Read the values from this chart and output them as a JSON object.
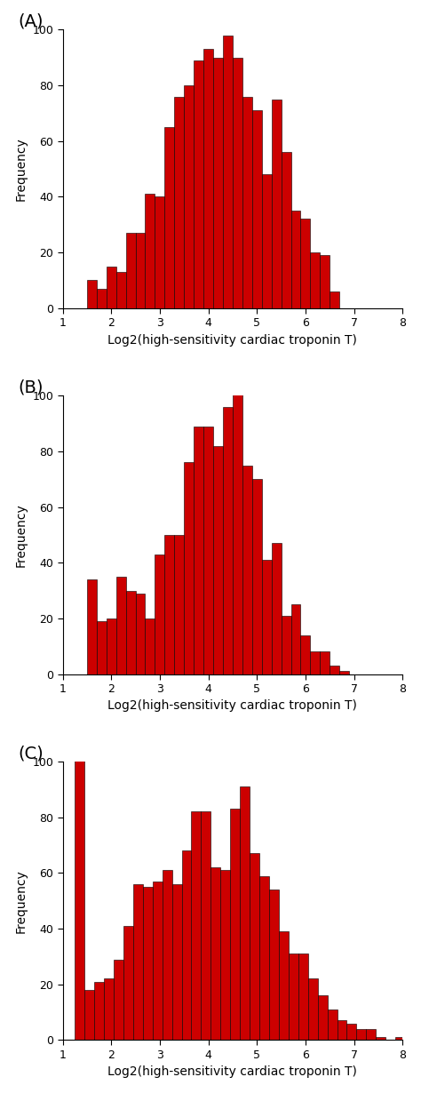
{
  "panels": [
    {
      "label": "(A)",
      "bar_heights": [
        10,
        7,
        15,
        13,
        27,
        27,
        41,
        40,
        65,
        76,
        80,
        89,
        93,
        90,
        98,
        90,
        76,
        71,
        48,
        75,
        56,
        35,
        32,
        20,
        19,
        6
      ],
      "bin_start": 1.5,
      "bin_width": 0.2,
      "xlim": [
        1,
        8
      ],
      "ylim": [
        0,
        100
      ],
      "xticks": [
        1,
        2,
        3,
        4,
        5,
        6,
        7,
        8
      ],
      "yticks": [
        0,
        20,
        40,
        60,
        80,
        100
      ],
      "xlabel": "Log2(high-sensitivity cardiac troponin T)",
      "ylabel": "Frequency"
    },
    {
      "label": "(B)",
      "bar_heights": [
        34,
        19,
        20,
        35,
        30,
        29,
        20,
        43,
        50,
        50,
        76,
        89,
        89,
        82,
        96,
        101,
        75,
        70,
        41,
        47,
        21,
        25,
        14,
        8,
        8,
        3,
        1
      ],
      "bin_start": 1.5,
      "bin_width": 0.2,
      "xlim": [
        1,
        8
      ],
      "ylim": [
        0,
        100
      ],
      "xticks": [
        1,
        2,
        3,
        4,
        5,
        6,
        7,
        8
      ],
      "yticks": [
        0,
        20,
        40,
        60,
        80,
        100
      ],
      "xlabel": "Log2(high-sensitivity cardiac troponin T)",
      "ylabel": "Frequency"
    },
    {
      "label": "(C)",
      "bar_heights": [
        103,
        18,
        21,
        22,
        29,
        41,
        56,
        55,
        57,
        61,
        56,
        68,
        82,
        82,
        62,
        61,
        83,
        91,
        67,
        59,
        54,
        39,
        31,
        31,
        22,
        16,
        11,
        7,
        6,
        4,
        4,
        1,
        0,
        1
      ],
      "bin_start": 1.25,
      "bin_width": 0.2,
      "xlim": [
        1,
        8
      ],
      "ylim": [
        0,
        100
      ],
      "xticks": [
        1,
        2,
        3,
        4,
        5,
        6,
        7,
        8
      ],
      "yticks": [
        0,
        20,
        40,
        60,
        80,
        100
      ],
      "xlabel": "Log2(high-sensitivity cardiac troponin T)",
      "ylabel": "Frequency"
    }
  ],
  "bar_color": "#CC0000",
  "bar_edge_color": "#000000",
  "bar_linewidth": 0.4,
  "background_color": "#ffffff",
  "label_fontsize": 14,
  "axis_fontsize": 10,
  "tick_fontsize": 9
}
